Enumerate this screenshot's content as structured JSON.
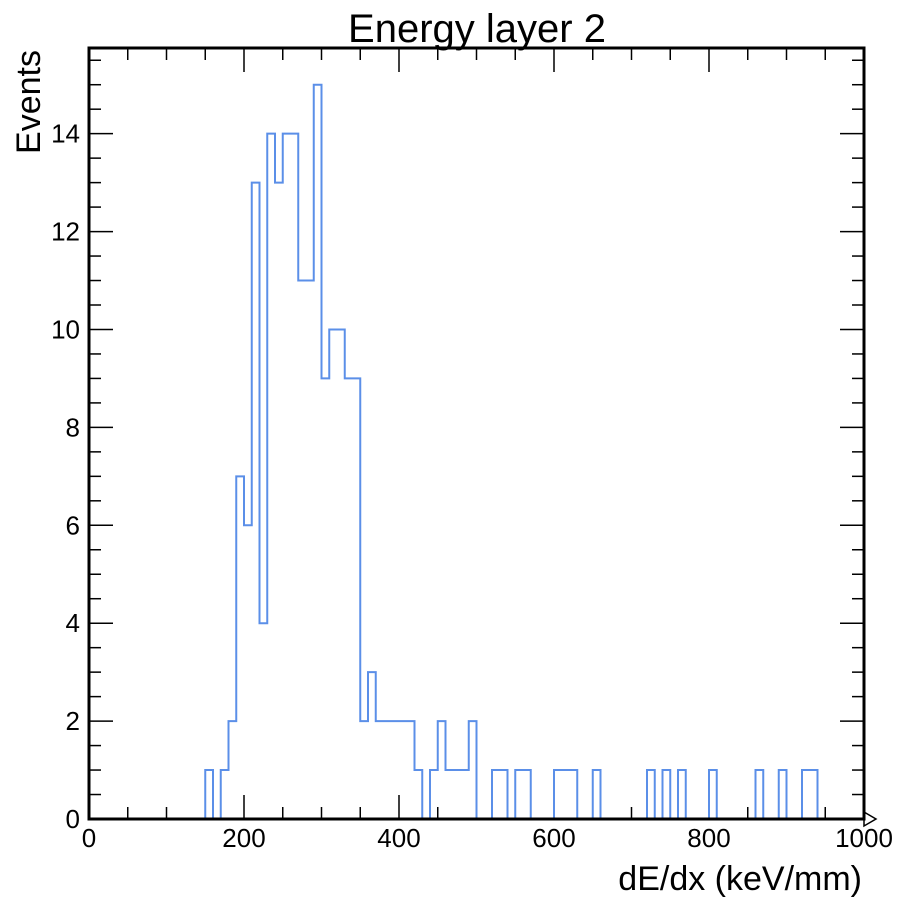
{
  "chart_data": {
    "type": "histogram",
    "title": "Energy layer 2",
    "xlabel": "dE/dx (keV/mm)",
    "ylabel": "Events",
    "xlim": [
      0,
      1000
    ],
    "ylim": [
      0,
      15.75
    ],
    "bin_width": 10,
    "x_ticks": [
      0,
      200,
      400,
      600,
      800,
      1000
    ],
    "y_ticks": [
      0,
      2,
      4,
      6,
      8,
      10,
      12,
      14
    ],
    "line_color": "#5b8fe8",
    "bins": [
      {
        "x": 150,
        "count": 1
      },
      {
        "x": 160,
        "count": 0
      },
      {
        "x": 170,
        "count": 1
      },
      {
        "x": 180,
        "count": 2
      },
      {
        "x": 190,
        "count": 7
      },
      {
        "x": 200,
        "count": 6
      },
      {
        "x": 210,
        "count": 13
      },
      {
        "x": 220,
        "count": 4
      },
      {
        "x": 230,
        "count": 14
      },
      {
        "x": 240,
        "count": 13
      },
      {
        "x": 250,
        "count": 14
      },
      {
        "x": 260,
        "count": 14
      },
      {
        "x": 270,
        "count": 11
      },
      {
        "x": 280,
        "count": 11
      },
      {
        "x": 290,
        "count": 15
      },
      {
        "x": 300,
        "count": 9
      },
      {
        "x": 310,
        "count": 10
      },
      {
        "x": 320,
        "count": 10
      },
      {
        "x": 330,
        "count": 9
      },
      {
        "x": 340,
        "count": 9
      },
      {
        "x": 350,
        "count": 2
      },
      {
        "x": 360,
        "count": 3
      },
      {
        "x": 370,
        "count": 2
      },
      {
        "x": 380,
        "count": 2
      },
      {
        "x": 390,
        "count": 2
      },
      {
        "x": 400,
        "count": 2
      },
      {
        "x": 410,
        "count": 2
      },
      {
        "x": 420,
        "count": 1
      },
      {
        "x": 430,
        "count": 0
      },
      {
        "x": 440,
        "count": 1
      },
      {
        "x": 450,
        "count": 2
      },
      {
        "x": 460,
        "count": 1
      },
      {
        "x": 470,
        "count": 1
      },
      {
        "x": 480,
        "count": 1
      },
      {
        "x": 490,
        "count": 2
      },
      {
        "x": 520,
        "count": 1
      },
      {
        "x": 530,
        "count": 1
      },
      {
        "x": 550,
        "count": 1
      },
      {
        "x": 560,
        "count": 1
      },
      {
        "x": 600,
        "count": 1
      },
      {
        "x": 610,
        "count": 1
      },
      {
        "x": 620,
        "count": 1
      },
      {
        "x": 650,
        "count": 1
      },
      {
        "x": 720,
        "count": 1
      },
      {
        "x": 740,
        "count": 1
      },
      {
        "x": 760,
        "count": 1
      },
      {
        "x": 800,
        "count": 1
      },
      {
        "x": 860,
        "count": 1
      },
      {
        "x": 890,
        "count": 1
      },
      {
        "x": 920,
        "count": 1
      },
      {
        "x": 930,
        "count": 1
      }
    ]
  }
}
